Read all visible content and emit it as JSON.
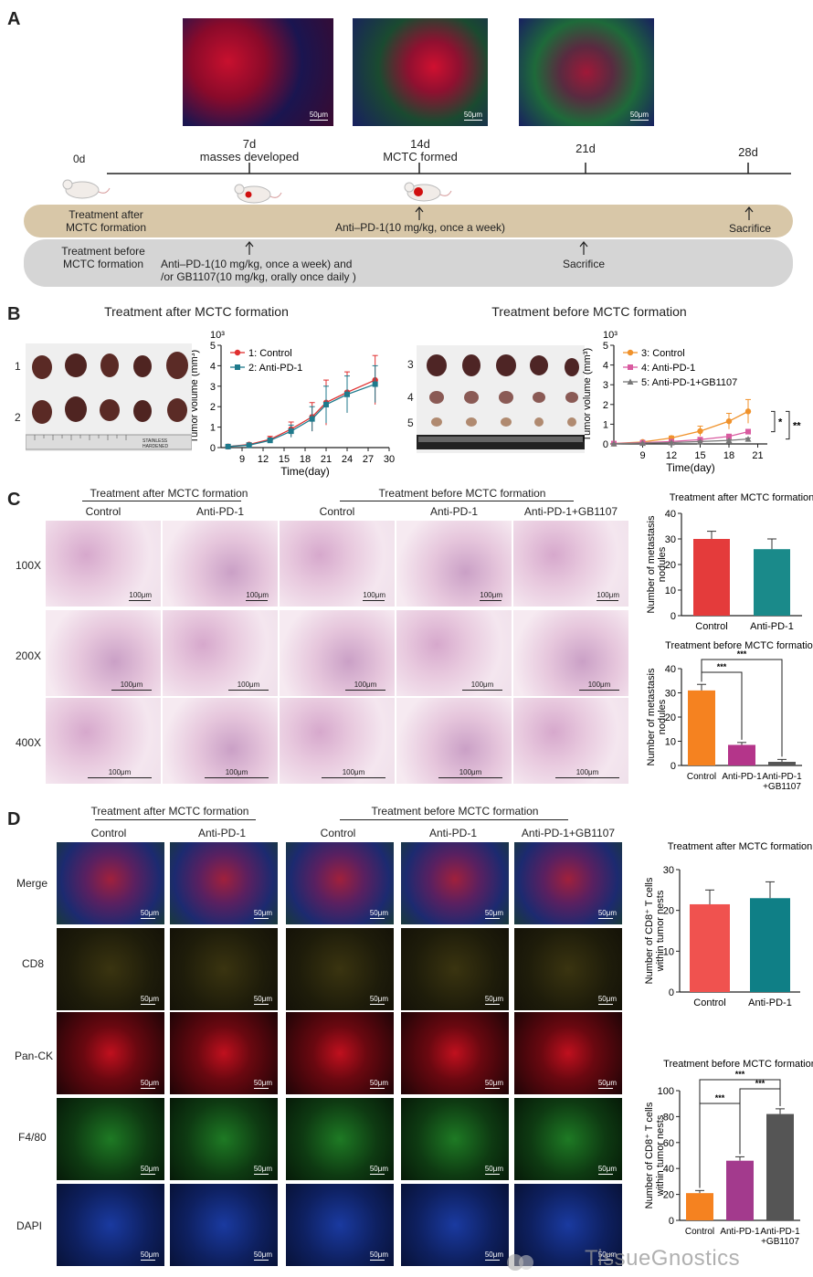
{
  "panel_labels": {
    "a": "A",
    "b": "B",
    "c": "C",
    "d": "D"
  },
  "scale_label": "50μm",
  "scale_label_he": "100μm",
  "timeline": {
    "d0": "0d",
    "d7": "7d",
    "d7_note": "masses developed",
    "d14": "14d",
    "d14_note": "MCTC formed",
    "d21": "21d",
    "d28": "28d",
    "after_label": "Treatment after\nMCTC formation",
    "after_treatment": "Anti–PD-1(10 mg/kg, once a week)",
    "after_end": "Sacrifice",
    "before_label": "Treatment before\nMCTC formation",
    "before_treatment": "Anti–PD-1(10 mg/kg, once a week) and\n/or GB1107(10 mg/kg, orally once daily )",
    "before_end": "Sacrifice"
  },
  "b": {
    "left_title": "Treatment after MCTC formation",
    "right_title": "Treatment before MCTC formation",
    "left_rows": [
      "1",
      "2"
    ],
    "right_rows": [
      "3",
      "4",
      "5"
    ],
    "ruler_text": "STAINLESS HARDENED"
  },
  "c": {
    "group_after": "Treatment after MCTC formation",
    "group_before": "Treatment before MCTC formation",
    "cols": [
      "Control",
      "Anti-PD-1",
      "Control",
      "Anti-PD-1",
      "Anti-PD-1+GB1107"
    ],
    "rows": [
      "100X",
      "200X",
      "400X"
    ]
  },
  "d": {
    "group_after": "Treatment after MCTC formation",
    "group_before": "Treatment before MCTC formation",
    "cols": [
      "Control",
      "Anti-PD-1",
      "Control",
      "Anti-PD-1",
      "Anti-PD-1+GB1107"
    ],
    "rows": [
      "Merge",
      "CD8",
      "Pan-CK",
      "F4/80",
      "DAPI"
    ]
  },
  "watermark": "TissueGnostics",
  "chart_data": [
    {
      "id": "b_left",
      "type": "line",
      "xlabel": "Time(day)",
      "ylabel": "Tumor volume (mm³)",
      "y_multiplier": "10³",
      "xlim": [
        6,
        30
      ],
      "ylim": [
        0,
        5
      ],
      "xticks": [
        9,
        12,
        15,
        18,
        21,
        24,
        27,
        30
      ],
      "yticks": [
        0,
        1,
        2,
        3,
        4,
        5
      ],
      "legend_position": "top-left",
      "series": [
        {
          "name": "1: Control",
          "color": "#e03030",
          "marker": "circle",
          "x": [
            7,
            10,
            13,
            16,
            19,
            21,
            24,
            28
          ],
          "y": [
            0.05,
            0.15,
            0.4,
            0.9,
            1.5,
            2.2,
            2.7,
            3.3
          ],
          "err": [
            0.02,
            0.08,
            0.15,
            0.35,
            0.7,
            1.1,
            1.0,
            1.2
          ]
        },
        {
          "name": "2: Anti-PD-1",
          "color": "#1f7a8c",
          "marker": "square",
          "x": [
            7,
            10,
            13,
            16,
            19,
            21,
            24,
            28
          ],
          "y": [
            0.05,
            0.12,
            0.35,
            0.8,
            1.4,
            2.1,
            2.6,
            3.1
          ],
          "err": [
            0.02,
            0.06,
            0.12,
            0.3,
            0.6,
            0.9,
            0.9,
            0.9
          ]
        }
      ]
    },
    {
      "id": "b_right",
      "type": "line",
      "xlabel": "Time(day)",
      "ylabel": "Tumor volume (mm³)",
      "y_multiplier": "10³",
      "xlim": [
        6,
        22
      ],
      "ylim": [
        0,
        5
      ],
      "xticks": [
        9,
        12,
        15,
        18,
        21
      ],
      "yticks": [
        0,
        1,
        2,
        3,
        4,
        5
      ],
      "legend_position": "top-left",
      "significance": [
        "*",
        "**"
      ],
      "series": [
        {
          "name": "3: Control",
          "color": "#f0922b",
          "marker": "circle",
          "x": [
            6,
            9,
            12,
            15,
            18,
            20
          ],
          "y": [
            0.02,
            0.1,
            0.3,
            0.65,
            1.15,
            1.65
          ],
          "err": [
            0.01,
            0.05,
            0.1,
            0.25,
            0.4,
            0.6
          ]
        },
        {
          "name": "4: Anti-PD-1",
          "color": "#d95ba0",
          "marker": "square",
          "x": [
            6,
            9,
            12,
            15,
            18,
            20
          ],
          "y": [
            0.02,
            0.06,
            0.12,
            0.22,
            0.38,
            0.62
          ],
          "err": [
            0.01,
            0.02,
            0.04,
            0.06,
            0.08,
            0.12
          ]
        },
        {
          "name": "5: Anti-PD-1+GB1107",
          "color": "#777777",
          "marker": "triangle",
          "x": [
            6,
            9,
            12,
            15,
            18,
            20
          ],
          "y": [
            0.01,
            0.04,
            0.07,
            0.12,
            0.18,
            0.25
          ],
          "err": [
            0.005,
            0.01,
            0.02,
            0.03,
            0.04,
            0.05
          ]
        }
      ]
    },
    {
      "id": "c_top",
      "type": "bar",
      "title": "Treatment after MCTC formation",
      "ylabel": "Number of metastasis\nnodules",
      "categories": [
        "Control",
        "Anti-PD-1"
      ],
      "values": [
        30,
        26
      ],
      "errors": [
        3,
        4
      ],
      "colors": [
        "#e43b3b",
        "#1a8a8a"
      ],
      "ylim": [
        0,
        40
      ],
      "yticks": [
        0,
        10,
        20,
        30,
        40
      ]
    },
    {
      "id": "c_bottom",
      "type": "bar",
      "title": "Treatment before MCTC formation",
      "ylabel": "Number of metastasis\nnodules",
      "categories": [
        "Control",
        "Anti-PD-1",
        "Anti-PD-1\n+GB1107"
      ],
      "values": [
        31,
        8.5,
        1.5
      ],
      "errors": [
        2.5,
        1,
        1
      ],
      "colors": [
        "#f58220",
        "#b4358a",
        "#555555"
      ],
      "ylim": [
        0,
        40
      ],
      "yticks": [
        0,
        10,
        20,
        30,
        40
      ],
      "significance": [
        {
          "from": 0,
          "to": 1,
          "label": "***"
        },
        {
          "from": 0,
          "to": 2,
          "label": "***"
        }
      ]
    },
    {
      "id": "d_top",
      "type": "bar",
      "title": "Treatment after MCTC formation",
      "ylabel": "Number of CD8⁺ T cells\nwithin tumor nests",
      "categories": [
        "Control",
        "Anti-PD-1"
      ],
      "values": [
        21.5,
        23
      ],
      "errors": [
        3.5,
        4
      ],
      "colors": [
        "#f0524f",
        "#0f7f86"
      ],
      "ylim": [
        0,
        30
      ],
      "yticks": [
        0,
        10,
        20,
        30
      ]
    },
    {
      "id": "d_bottom",
      "type": "bar",
      "title": "Treatment before MCTC formation",
      "ylabel": "Number of CD8⁺ T cells\nwithin tumor nests",
      "categories": [
        "Control",
        "Anti-PD-1",
        "Anti-PD-1\n+GB1107"
      ],
      "values": [
        21,
        46,
        82
      ],
      "errors": [
        2,
        3,
        4
      ],
      "colors": [
        "#f58220",
        "#a33a8d",
        "#555555"
      ],
      "ylim": [
        0,
        100
      ],
      "yticks": [
        0,
        20,
        40,
        60,
        80,
        100
      ],
      "significance": [
        {
          "from": 0,
          "to": 1,
          "label": "***"
        },
        {
          "from": 1,
          "to": 2,
          "label": "***"
        },
        {
          "from": 0,
          "to": 2,
          "label": "***"
        }
      ]
    }
  ]
}
